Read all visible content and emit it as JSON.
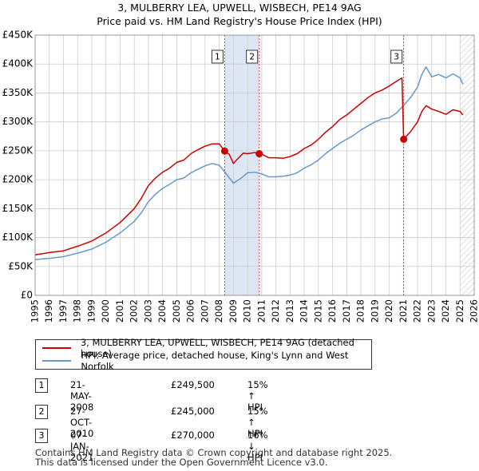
{
  "title_line1": "3, MULBERRY LEA, UPWELL, WISBECH, PE14 9AG",
  "title_line2": "Price paid vs. HM Land Registry's House Price Index (HPI)",
  "colors": {
    "property": "#cc0000",
    "hpi": "#6699cc",
    "shade": "#dde6f5",
    "vline": "#dd4444",
    "grid": "#cccccc"
  },
  "chart_data": {
    "type": "line",
    "xlim": [
      1995,
      2026
    ],
    "ylim": [
      0,
      450000
    ],
    "x_ticks": [
      1995,
      1996,
      1997,
      1998,
      1999,
      2000,
      2001,
      2002,
      2003,
      2004,
      2005,
      2006,
      2007,
      2008,
      2009,
      2010,
      2011,
      2012,
      2013,
      2014,
      2015,
      2016,
      2017,
      2018,
      2019,
      2020,
      2021,
      2022,
      2023,
      2024,
      2025,
      2026
    ],
    "y_ticks": [
      0,
      50000,
      100000,
      150000,
      200000,
      250000,
      300000,
      350000,
      400000,
      450000
    ],
    "y_tick_labels": [
      "£0",
      "£50K",
      "£100K",
      "£150K",
      "£200K",
      "£250K",
      "£300K",
      "£350K",
      "£400K",
      "£450K"
    ],
    "shaded_ranges": [
      [
        2008.38,
        2010.82
      ]
    ],
    "future_hatch_from": 2025.0,
    "markers": [
      {
        "label": "1",
        "x": 2008.38,
        "y": 249500
      },
      {
        "label": "2",
        "x": 2010.82,
        "y": 245000
      },
      {
        "label": "3",
        "x": 2021.02,
        "y": 270000
      }
    ],
    "series": [
      {
        "name": "3, MULBERRY LEA, UPWELL, WISBECH, PE14 9AG (detached house)",
        "color": "#cc0000",
        "x": [
          1995.0,
          1996.0,
          1997.0,
          1998.0,
          1999.0,
          2000.0,
          2001.0,
          2002.0,
          2002.5,
          2003.0,
          2003.5,
          2004.0,
          2004.5,
          2005.0,
          2005.5,
          2006.0,
          2006.5,
          2007.0,
          2007.5,
          2008.0,
          2008.38,
          2008.7,
          2009.0,
          2009.3,
          2009.7,
          2010.0,
          2010.5,
          2010.82,
          2011.0,
          2011.5,
          2012.0,
          2012.5,
          2013.0,
          2013.5,
          2014.0,
          2014.5,
          2015.0,
          2015.5,
          2016.0,
          2016.5,
          2017.0,
          2017.5,
          2018.0,
          2018.5,
          2019.0,
          2019.5,
          2020.0,
          2020.5,
          2020.9,
          2021.02,
          2021.5,
          2022.0,
          2022.3,
          2022.6,
          2023.0,
          2023.5,
          2024.0,
          2024.5,
          2025.0,
          2025.2
        ],
        "y": [
          70000,
          74000,
          77000,
          85000,
          94000,
          108000,
          126000,
          150000,
          168000,
          190000,
          203000,
          213000,
          220000,
          230000,
          234000,
          245000,
          252000,
          258000,
          262000,
          262000,
          249500,
          244000,
          228000,
          236000,
          246000,
          245000,
          247000,
          245000,
          244000,
          238000,
          238000,
          237000,
          240000,
          245000,
          254000,
          260000,
          270000,
          282000,
          292000,
          304000,
          312000,
          322000,
          332000,
          342000,
          350000,
          355000,
          362000,
          370000,
          376000,
          270000,
          283000,
          300000,
          318000,
          328000,
          322000,
          318000,
          313000,
          321000,
          318000,
          312000
        ]
      },
      {
        "name": "HPI: Average price, detached house, King's Lynn and West Norfolk",
        "color": "#6699cc",
        "x": [
          1995.0,
          1996.0,
          1997.0,
          1998.0,
          1999.0,
          2000.0,
          2001.0,
          2002.0,
          2002.5,
          2003.0,
          2003.5,
          2004.0,
          2004.5,
          2005.0,
          2005.5,
          2006.0,
          2006.5,
          2007.0,
          2007.5,
          2008.0,
          2008.5,
          2009.0,
          2009.5,
          2010.0,
          2010.5,
          2011.0,
          2011.5,
          2012.0,
          2012.5,
          2013.0,
          2013.5,
          2014.0,
          2014.5,
          2015.0,
          2015.5,
          2016.0,
          2016.5,
          2017.0,
          2017.5,
          2018.0,
          2018.5,
          2019.0,
          2019.5,
          2020.0,
          2020.5,
          2021.0,
          2021.5,
          2022.0,
          2022.3,
          2022.6,
          2023.0,
          2023.5,
          2024.0,
          2024.5,
          2025.0,
          2025.2
        ],
        "y": [
          62000,
          64000,
          67000,
          73000,
          80000,
          92000,
          108000,
          128000,
          143000,
          162000,
          175000,
          185000,
          192000,
          200000,
          203000,
          212000,
          218000,
          224000,
          228000,
          225000,
          210000,
          194000,
          202000,
          212000,
          213000,
          210000,
          205000,
          205000,
          206000,
          208000,
          212000,
          220000,
          226000,
          234000,
          245000,
          254000,
          263000,
          270000,
          277000,
          286000,
          293000,
          300000,
          305000,
          307000,
          315000,
          328000,
          342000,
          360000,
          382000,
          395000,
          378000,
          382000,
          376000,
          383000,
          376000,
          365000
        ]
      }
    ]
  },
  "legend": [
    {
      "label": "3, MULBERRY LEA, UPWELL, WISBECH, PE14 9AG (detached house)",
      "color": "#cc0000"
    },
    {
      "label": "HPI: Average price, detached house, King's Lynn and West Norfolk",
      "color": "#6699cc"
    }
  ],
  "transactions": [
    {
      "num": "1",
      "date": "21-MAY-2008",
      "price": "£249,500",
      "hpi": "15% ↑ HPI"
    },
    {
      "num": "2",
      "date": "27-OCT-2010",
      "price": "£245,000",
      "hpi": "15% ↑ HPI"
    },
    {
      "num": "3",
      "date": "07-JAN-2021",
      "price": "£270,000",
      "hpi": "16% ↓ HPI"
    }
  ],
  "footer_line1": "Contains HM Land Registry data © Crown copyright and database right 2025.",
  "footer_line2": "This data is licensed under the Open Government Licence v3.0."
}
